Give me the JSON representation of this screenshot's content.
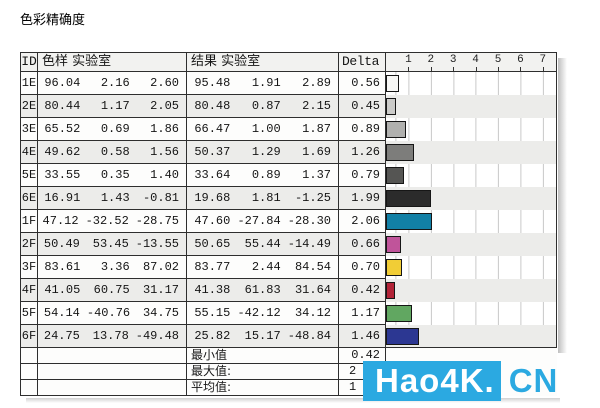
{
  "title": "色彩精确度",
  "chart_data": {
    "type": "bar",
    "orientation": "horizontal",
    "title": "色彩精确度",
    "value_label": "Delta E",
    "xlim": [
      0,
      7
    ],
    "x_ticks": [
      1,
      2,
      3,
      4,
      5,
      6,
      7
    ],
    "grid": true,
    "categories": [
      "1E",
      "2E",
      "3E",
      "4E",
      "5E",
      "6E",
      "1F",
      "2F",
      "3F",
      "4F",
      "5F",
      "6F"
    ],
    "values": [
      0.56,
      0.45,
      0.89,
      1.26,
      0.79,
      1.99,
      2.06,
      0.66,
      0.7,
      0.42,
      1.17,
      1.46
    ],
    "bar_colors": [
      "#f7f7f5",
      "#cbcbc9",
      "#b0b0ae",
      "#7d7d7b",
      "#555553",
      "#2b2b2b",
      "#1280a6",
      "#c0549a",
      "#f1cd36",
      "#b22338",
      "#61a761",
      "#2c3792"
    ],
    "summary": {
      "min": "0.42",
      "max_visible": "2",
      "avg_visible": "1"
    }
  },
  "table": {
    "headers": {
      "id": "ID",
      "sample": "色样 实验室",
      "result": "结果 实验室",
      "delta": "Delta E"
    },
    "scale_ticks": [
      "1",
      "2",
      "3",
      "4",
      "5",
      "6",
      "7"
    ],
    "rows": [
      {
        "id": "1E",
        "sample": [
          "96.04",
          "2.16",
          "2.60"
        ],
        "result": [
          "95.48",
          "1.91",
          "2.89"
        ],
        "delta": "0.56"
      },
      {
        "id": "2E",
        "sample": [
          "80.44",
          "1.17",
          "2.05"
        ],
        "result": [
          "80.48",
          "0.87",
          "2.15"
        ],
        "delta": "0.45"
      },
      {
        "id": "3E",
        "sample": [
          "65.52",
          "0.69",
          "1.86"
        ],
        "result": [
          "66.47",
          "1.00",
          "1.87"
        ],
        "delta": "0.89"
      },
      {
        "id": "4E",
        "sample": [
          "49.62",
          "0.58",
          "1.56"
        ],
        "result": [
          "50.37",
          "1.29",
          "1.69"
        ],
        "delta": "1.26"
      },
      {
        "id": "5E",
        "sample": [
          "33.55",
          "0.35",
          "1.40"
        ],
        "result": [
          "33.64",
          "0.89",
          "1.37"
        ],
        "delta": "0.79"
      },
      {
        "id": "6E",
        "sample": [
          "16.91",
          "1.43",
          "-0.81"
        ],
        "result": [
          "19.68",
          "1.81",
          "-1.25"
        ],
        "delta": "1.99"
      },
      {
        "id": "1F",
        "sample": [
          "47.12",
          "-32.52",
          "-28.75"
        ],
        "result": [
          "47.60",
          "-27.84",
          "-28.30"
        ],
        "delta": "2.06"
      },
      {
        "id": "2F",
        "sample": [
          "50.49",
          "53.45",
          "-13.55"
        ],
        "result": [
          "50.65",
          "55.44",
          "-14.49"
        ],
        "delta": "0.66"
      },
      {
        "id": "3F",
        "sample": [
          "83.61",
          "3.36",
          "87.02"
        ],
        "result": [
          "83.77",
          "2.44",
          "84.54"
        ],
        "delta": "0.70"
      },
      {
        "id": "4F",
        "sample": [
          "41.05",
          "60.75",
          "31.17"
        ],
        "result": [
          "41.38",
          "61.83",
          "31.64"
        ],
        "delta": "0.42"
      },
      {
        "id": "5F",
        "sample": [
          "54.14",
          "-40.76",
          "34.75"
        ],
        "result": [
          "55.15",
          "-42.12",
          "34.12"
        ],
        "delta": "1.17"
      },
      {
        "id": "6F",
        "sample": [
          "24.75",
          "13.78",
          "-49.48"
        ],
        "result": [
          "25.82",
          "15.17",
          "-48.84"
        ],
        "delta": "1.46"
      }
    ],
    "summary": [
      {
        "label": "最小值",
        "value": "0.42",
        "align": "right"
      },
      {
        "label": "最大值:",
        "value": "2",
        "align": "left"
      },
      {
        "label": "平均值:",
        "value": "1",
        "align": "left"
      }
    ]
  },
  "watermark": {
    "box_text": "Hao4K.",
    "suffix": "CN",
    "accent_color": "#2BA9E1"
  }
}
